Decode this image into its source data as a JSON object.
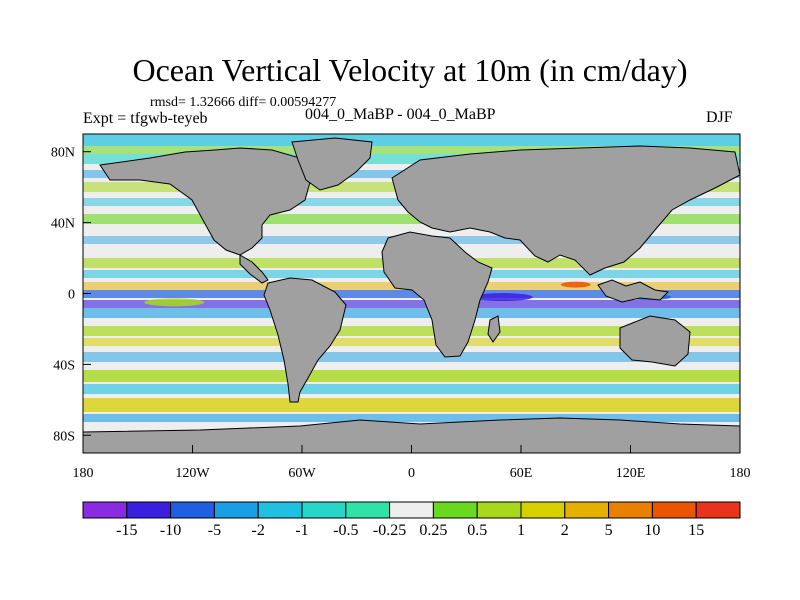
{
  "title": "Ocean Vertical Velocity at 10m (in cm/day)",
  "stats_line": "rmsd= 1.32666 diff= 0.00594277",
  "experiment": "Expt = tfgwb-teyeb",
  "difference_label": "004_0_MaBP - 004_0_MaBP",
  "season": "DJF",
  "chart_data": {
    "type": "heatmap",
    "title": "Ocean Vertical Velocity at 10m (in cm/day)",
    "projection": "cylindrical equidistant",
    "xlim": [
      -180,
      180
    ],
    "ylim": [
      -90,
      90
    ],
    "x_ticks": [
      {
        "value": -180,
        "label": "180"
      },
      {
        "value": -120,
        "label": "120W"
      },
      {
        "value": -60,
        "label": "60W"
      },
      {
        "value": 0,
        "label": "0"
      },
      {
        "value": 60,
        "label": "60E"
      },
      {
        "value": 120,
        "label": "120E"
      },
      {
        "value": 180,
        "label": "180"
      }
    ],
    "y_ticks": [
      {
        "value": 80,
        "label": "80N"
      },
      {
        "value": 40,
        "label": "40N"
      },
      {
        "value": 0,
        "label": "0"
      },
      {
        "value": -40,
        "label": "40S"
      },
      {
        "value": -80,
        "label": "80S"
      }
    ],
    "colorbar": {
      "labels": [
        "-15",
        "-10",
        "-5",
        "-2",
        "-1",
        "-0.5",
        "-0.25",
        "0.25",
        "0.5",
        "1",
        "2",
        "5",
        "10",
        "15"
      ],
      "colors": [
        "#8a2be2",
        "#3a1fe0",
        "#1f5fe0",
        "#1a9ee6",
        "#1fc0e0",
        "#27d6c8",
        "#30e2a8",
        "#eeeeee",
        "#6ad81e",
        "#a8d81e",
        "#d6d000",
        "#e6b000",
        "#e88000",
        "#ea5500",
        "#e8341a"
      ]
    },
    "land_color": "#a0a0a0"
  }
}
